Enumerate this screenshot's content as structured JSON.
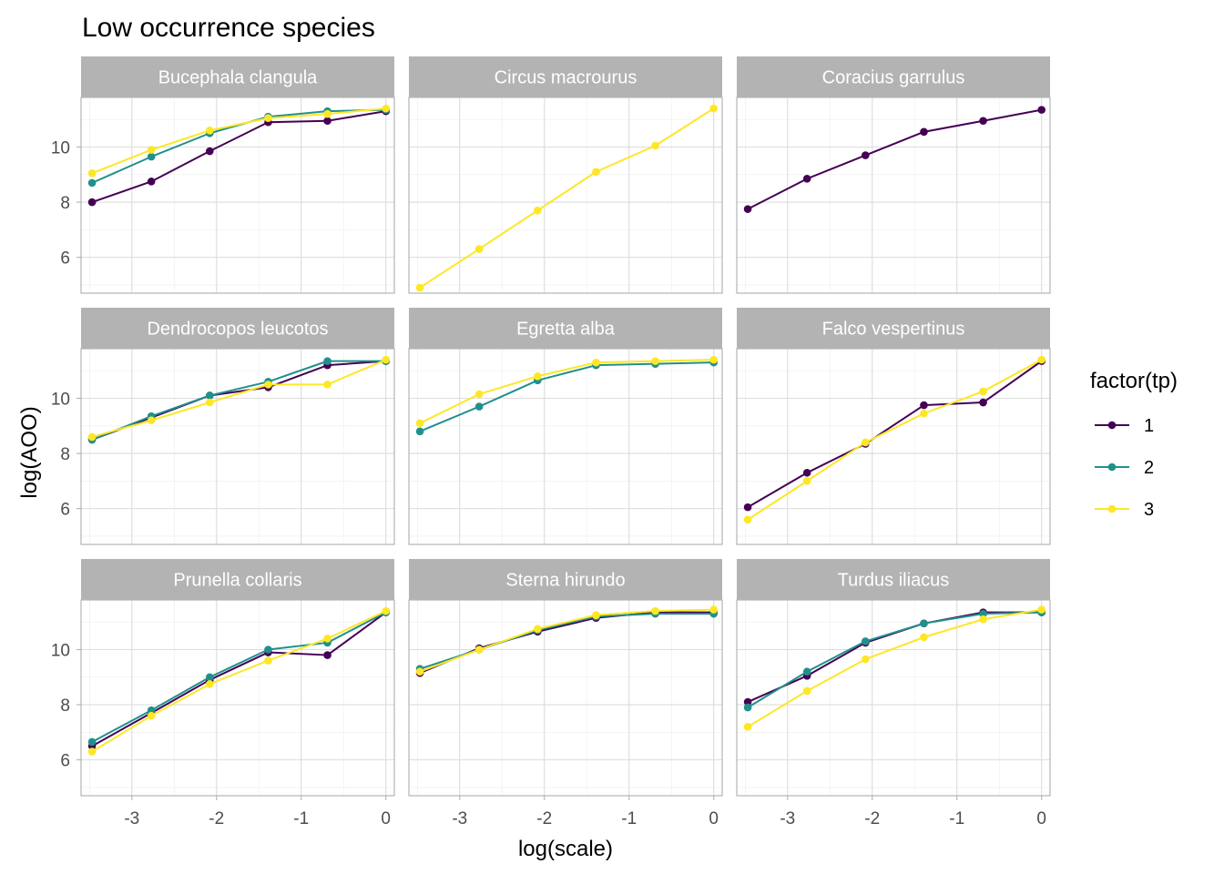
{
  "chart_data": {
    "type": "line",
    "title": "Low occurrence species",
    "xlabel": "log(scale)",
    "ylabel": "log(AOO)",
    "legend": {
      "title": "factor(tp)",
      "position": "right",
      "entries": [
        {
          "label": "1",
          "color": "#440154"
        },
        {
          "label": "2",
          "color": "#21908C"
        },
        {
          "label": "3",
          "color": "#FDE725"
        }
      ]
    },
    "facet_layout": {
      "rows": 3,
      "cols": 3
    },
    "xlim": [
      -3.6,
      0.1
    ],
    "ylim": [
      4.7,
      11.8
    ],
    "x_ticks": [
      -3,
      -2,
      -1,
      0
    ],
    "y_ticks": [
      6,
      8,
      10
    ],
    "grid": true,
    "x": [
      -3.47,
      -2.77,
      -2.08,
      -1.39,
      -0.69,
      0
    ],
    "panels": [
      {
        "name": "Bucephala clangula",
        "series": [
          {
            "name": "1",
            "values": [
              8.0,
              8.75,
              9.85,
              10.9,
              10.95,
              11.3
            ]
          },
          {
            "name": "2",
            "values": [
              8.7,
              9.65,
              10.5,
              11.1,
              11.3,
              11.35
            ]
          },
          {
            "name": "3",
            "values": [
              9.05,
              9.9,
              10.6,
              11.05,
              11.2,
              11.4
            ]
          }
        ]
      },
      {
        "name": "Circus macrourus",
        "series": [
          {
            "name": "3",
            "values": [
              4.9,
              6.3,
              7.7,
              9.1,
              10.05,
              11.4
            ]
          }
        ]
      },
      {
        "name": "Coracius garrulus",
        "series": [
          {
            "name": "1",
            "values": [
              7.75,
              8.85,
              9.7,
              10.55,
              10.95,
              11.35
            ]
          }
        ]
      },
      {
        "name": "Dendrocopos leucotos",
        "series": [
          {
            "name": "1",
            "values": [
              8.5,
              9.3,
              10.1,
              10.4,
              11.2,
              11.35
            ]
          },
          {
            "name": "2",
            "values": [
              8.5,
              9.35,
              10.1,
              10.6,
              11.35,
              11.35
            ]
          },
          {
            "name": "3",
            "values": [
              8.6,
              9.2,
              9.85,
              10.5,
              10.5,
              11.4
            ]
          }
        ]
      },
      {
        "name": "Egretta alba",
        "series": [
          {
            "name": "2",
            "values": [
              8.8,
              9.7,
              10.65,
              11.2,
              11.25,
              11.3
            ]
          },
          {
            "name": "3",
            "values": [
              9.1,
              10.15,
              10.8,
              11.3,
              11.35,
              11.4
            ]
          }
        ]
      },
      {
        "name": "Falco vespertinus",
        "series": [
          {
            "name": "1",
            "values": [
              6.05,
              7.3,
              8.35,
              9.75,
              9.85,
              11.35
            ]
          },
          {
            "name": "3",
            "values": [
              5.6,
              7.0,
              8.4,
              9.45,
              10.25,
              11.4
            ]
          }
        ]
      },
      {
        "name": "Prunella collaris",
        "series": [
          {
            "name": "1",
            "values": [
              6.5,
              7.7,
              8.9,
              9.9,
              9.8,
              11.35
            ]
          },
          {
            "name": "2",
            "values": [
              6.65,
              7.8,
              9.0,
              10.0,
              10.25,
              11.35
            ]
          },
          {
            "name": "3",
            "values": [
              6.3,
              7.6,
              8.75,
              9.6,
              10.4,
              11.4
            ]
          }
        ]
      },
      {
        "name": "Sterna hirundo",
        "series": [
          {
            "name": "1",
            "values": [
              9.15,
              10.05,
              10.65,
              11.15,
              11.35,
              11.35
            ]
          },
          {
            "name": "2",
            "values": [
              9.3,
              10.0,
              10.7,
              11.2,
              11.3,
              11.3
            ]
          },
          {
            "name": "3",
            "values": [
              9.2,
              10.0,
              10.75,
              11.25,
              11.4,
              11.45
            ]
          }
        ]
      },
      {
        "name": "Turdus iliacus",
        "series": [
          {
            "name": "1",
            "values": [
              8.1,
              9.05,
              10.25,
              10.95,
              11.35,
              11.35
            ]
          },
          {
            "name": "2",
            "values": [
              7.9,
              9.2,
              10.3,
              10.95,
              11.3,
              11.35
            ]
          },
          {
            "name": "3",
            "values": [
              7.2,
              8.5,
              9.65,
              10.45,
              11.1,
              11.45
            ]
          }
        ]
      }
    ]
  }
}
